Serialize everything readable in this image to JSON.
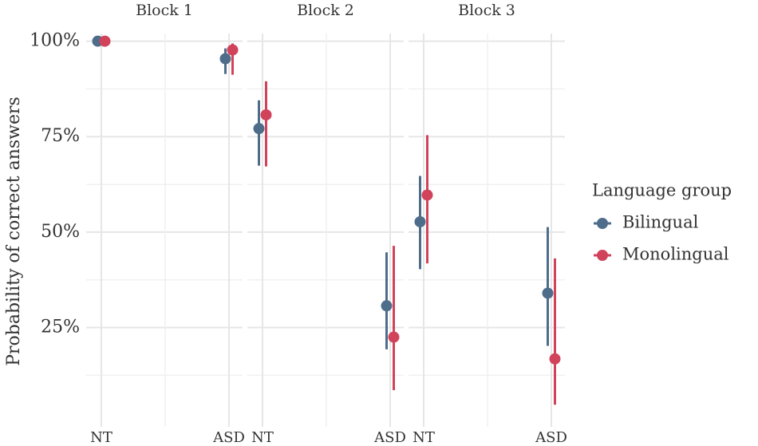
{
  "chart_data": {
    "type": "pointrange",
    "ylabel": "Probability of correct answers",
    "legend_title": "Language group",
    "ylim": [
      -1,
      102
    ],
    "yticks": [
      {
        "value": 25,
        "label": "25%"
      },
      {
        "value": 50,
        "label": "50%"
      },
      {
        "value": 75,
        "label": "75%"
      },
      {
        "value": 100,
        "label": "100%"
      }
    ],
    "minor_yticks": [
      12.5,
      37.5,
      62.5,
      87.5
    ],
    "grid": true,
    "series": [
      {
        "name": "Bilingual",
        "color": "#4e6d8a"
      },
      {
        "name": "Monolingual",
        "color": "#d1435b"
      }
    ],
    "facets": [
      {
        "title": "Block 1",
        "categories": [
          "NT",
          "ASD"
        ],
        "series": [
          {
            "values": [
              100,
              95.4
            ],
            "lower": [
              99.6,
              91.4
            ],
            "upper": [
              100,
              98.1
            ]
          },
          {
            "values": [
              100,
              97.7
            ],
            "lower": [
              99.6,
              91.2
            ],
            "upper": [
              100,
              99.4
            ]
          }
        ]
      },
      {
        "title": "Block 2",
        "categories": [
          "NT",
          "ASD"
        ],
        "series": [
          {
            "values": [
              77.1,
              30.7
            ],
            "lower": [
              67.4,
              19.3
            ],
            "upper": [
              84.5,
              44.7
            ]
          },
          {
            "values": [
              80.7,
              22.5
            ],
            "lower": [
              67.2,
              8.6
            ],
            "upper": [
              89.5,
              46.4
            ]
          }
        ]
      },
      {
        "title": "Block 3",
        "categories": [
          "NT",
          "ASD"
        ],
        "series": [
          {
            "values": [
              52.7,
              34.0
            ],
            "lower": [
              40.3,
              20.2
            ],
            "upper": [
              64.7,
              51.3
            ]
          },
          {
            "values": [
              59.7,
              16.8
            ],
            "lower": [
              41.8,
              4.8
            ],
            "upper": [
              75.4,
              43.1
            ]
          }
        ]
      }
    ]
  }
}
